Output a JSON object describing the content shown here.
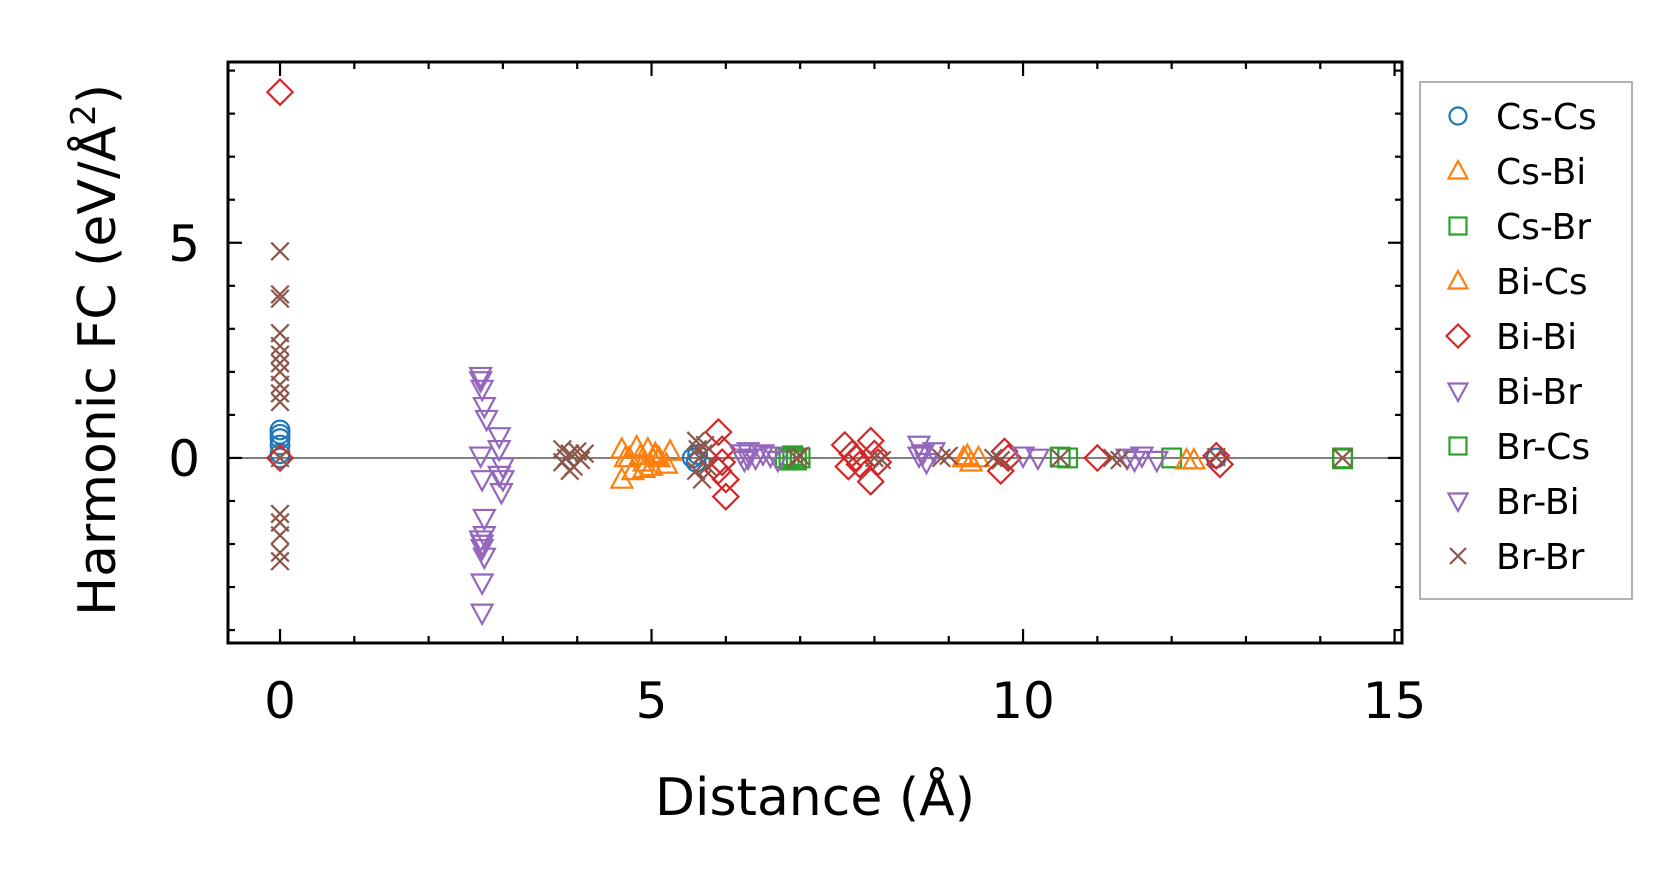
{
  "chart_data": {
    "type": "scatter",
    "xlabel": "Distance (Å)",
    "ylabel": "Harmonic FC (eV/Å",
    "ylabel_sup": "2",
    "ylabel_close": ")",
    "xlim": [
      -0.7,
      15.1
    ],
    "ylim": [
      -4.3,
      9.2
    ],
    "x_ticks": [
      {
        "value": 0,
        "label": "0"
      },
      {
        "value": 5,
        "label": "5"
      },
      {
        "value": 10,
        "label": "10"
      },
      {
        "value": 15,
        "label": "15"
      }
    ],
    "y_ticks": [
      {
        "value": 0,
        "label": "0"
      },
      {
        "value": 5,
        "label": "5"
      }
    ],
    "zero_line": true,
    "grid": false,
    "legend_position": "right-outside",
    "series": [
      {
        "name": "Cs-Cs",
        "marker": "circle",
        "color": "#1f77b4",
        "filled": false,
        "points": [
          [
            0,
            0
          ],
          [
            0,
            0.1
          ],
          [
            0,
            0.3
          ],
          [
            0,
            0.45
          ],
          [
            0,
            0.55
          ],
          [
            0,
            0.65
          ],
          [
            5.55,
            0
          ],
          [
            5.6,
            -0.1
          ],
          [
            5.62,
            0.08
          ],
          [
            12.6,
            0
          ]
        ]
      },
      {
        "name": "Cs-Bi",
        "marker": "triangle-up",
        "color": "#ff7f0e",
        "filled": false,
        "points": [
          [
            4.6,
            0.2
          ],
          [
            4.6,
            -0.5
          ],
          [
            4.7,
            0
          ],
          [
            4.75,
            -0.3
          ],
          [
            4.8,
            0.25
          ],
          [
            4.85,
            0.05
          ],
          [
            4.9,
            -0.25
          ],
          [
            4.95,
            0.2
          ],
          [
            5.0,
            -0.2
          ],
          [
            5.05,
            0.1
          ],
          [
            5.1,
            0
          ],
          [
            5.2,
            -0.15
          ],
          [
            5.25,
            0.15
          ],
          [
            9.2,
            0
          ],
          [
            9.3,
            -0.1
          ],
          [
            9.4,
            0
          ],
          [
            12.3,
            -0.05
          ]
        ]
      },
      {
        "name": "Cs-Br",
        "marker": "square",
        "color": "#2ca02c",
        "filled": false,
        "points": [
          [
            6.8,
            0
          ],
          [
            6.85,
            -0.05
          ],
          [
            6.9,
            0.05
          ],
          [
            7.0,
            0
          ],
          [
            10.6,
            0
          ],
          [
            12.0,
            0
          ],
          [
            14.3,
            0
          ]
        ]
      },
      {
        "name": "Bi-Cs",
        "marker": "triangle-up",
        "color": "#ff7f0e",
        "filled": false,
        "points": [
          [
            4.65,
            0
          ],
          [
            4.9,
            -0.1
          ],
          [
            5.05,
            0.05
          ],
          [
            9.25,
            0.05
          ],
          [
            12.2,
            -0.05
          ]
        ]
      },
      {
        "name": "Bi-Bi",
        "marker": "diamond",
        "color": "#d62728",
        "filled": false,
        "points": [
          [
            0,
            8.5
          ],
          [
            0,
            0
          ],
          [
            5.9,
            0.6
          ],
          [
            5.9,
            -0.3
          ],
          [
            5.95,
            0.2
          ],
          [
            6.0,
            -0.5
          ],
          [
            6.0,
            -0.9
          ],
          [
            5.95,
            -0.1
          ],
          [
            7.6,
            0.3
          ],
          [
            7.65,
            -0.2
          ],
          [
            7.7,
            0.1
          ],
          [
            7.75,
            0
          ],
          [
            7.8,
            -0.15
          ],
          [
            7.95,
            0.4
          ],
          [
            7.95,
            -0.55
          ],
          [
            8.0,
            0.1
          ],
          [
            8.05,
            -0.1
          ],
          [
            9.7,
            -0.3
          ],
          [
            9.75,
            0.15
          ],
          [
            9.8,
            0
          ],
          [
            11.0,
            0
          ],
          [
            12.6,
            0.05
          ],
          [
            12.65,
            -0.15
          ]
        ]
      },
      {
        "name": "Bi-Br",
        "marker": "triangle-down",
        "color": "#9467bd",
        "filled": false,
        "points": [
          [
            2.7,
            1.9
          ],
          [
            2.72,
            1.6
          ],
          [
            2.75,
            1.2
          ],
          [
            2.78,
            0.9
          ],
          [
            2.7,
            0.05
          ],
          [
            2.72,
            -0.5
          ],
          [
            2.75,
            -1.4
          ],
          [
            2.7,
            -1.9
          ],
          [
            2.72,
            -2.1
          ],
          [
            2.75,
            -2.3
          ],
          [
            2.72,
            -2.9
          ],
          [
            2.72,
            -3.6
          ],
          [
            2.95,
            0.5
          ],
          [
            2.95,
            0.2
          ],
          [
            3.0,
            -0.2
          ],
          [
            3.0,
            -0.5
          ],
          [
            2.98,
            -0.8
          ],
          [
            6.2,
            0.1
          ],
          [
            6.25,
            -0.05
          ],
          [
            6.3,
            0.15
          ],
          [
            6.4,
            0
          ],
          [
            6.5,
            0.1
          ],
          [
            6.6,
            0.05
          ],
          [
            6.7,
            -0.05
          ],
          [
            8.6,
            0.3
          ],
          [
            8.65,
            0.1
          ],
          [
            8.7,
            -0.1
          ],
          [
            8.8,
            0.15
          ],
          [
            10.0,
            0.05
          ],
          [
            10.2,
            0
          ],
          [
            11.4,
            0
          ],
          [
            11.6,
            0.05
          ],
          [
            11.8,
            -0.05
          ]
        ]
      },
      {
        "name": "Br-Cs",
        "marker": "square",
        "color": "#2ca02c",
        "filled": false,
        "points": [
          [
            6.95,
            -0.05
          ],
          [
            10.5,
            0.02
          ],
          [
            14.3,
            -0.02
          ]
        ]
      },
      {
        "name": "Br-Bi",
        "marker": "triangle-down",
        "color": "#9467bd",
        "filled": false,
        "points": [
          [
            2.7,
            1.8
          ],
          [
            2.75,
            -1.8
          ],
          [
            2.72,
            -2.0
          ],
          [
            2.95,
            -0.4
          ],
          [
            6.3,
            0
          ],
          [
            8.6,
            0.05
          ],
          [
            11.5,
            -0.05
          ]
        ]
      },
      {
        "name": "Br-Br",
        "marker": "x",
        "color": "#8c564b",
        "filled": false,
        "points": [
          [
            0,
            4.8
          ],
          [
            0,
            3.8
          ],
          [
            0,
            3.7
          ],
          [
            0,
            2.9
          ],
          [
            0,
            2.6
          ],
          [
            0,
            2.4
          ],
          [
            0,
            2.2
          ],
          [
            0,
            2.0
          ],
          [
            0,
            1.7
          ],
          [
            0,
            1.5
          ],
          [
            0,
            1.3
          ],
          [
            0,
            0
          ],
          [
            0,
            -1.3
          ],
          [
            0,
            -1.5
          ],
          [
            0,
            -1.8
          ],
          [
            0,
            -2.2
          ],
          [
            0,
            -2.4
          ],
          [
            3.8,
            0.2
          ],
          [
            3.8,
            -0.1
          ],
          [
            3.85,
            0
          ],
          [
            3.9,
            0.1
          ],
          [
            3.95,
            -0.2
          ],
          [
            4.0,
            0.15
          ],
          [
            4.05,
            -0.05
          ],
          [
            4.1,
            0.1
          ],
          [
            3.9,
            -0.3
          ],
          [
            5.6,
            0.4
          ],
          [
            5.62,
            0.2
          ],
          [
            5.65,
            0
          ],
          [
            5.6,
            -0.3
          ],
          [
            5.68,
            -0.5
          ],
          [
            5.7,
            0.1
          ],
          [
            5.75,
            -0.2
          ],
          [
            5.72,
            0.3
          ],
          [
            6.95,
            0
          ],
          [
            7.0,
            0.05
          ],
          [
            8.0,
            0
          ],
          [
            8.1,
            -0.05
          ],
          [
            8.9,
            0
          ],
          [
            9.0,
            0.05
          ],
          [
            9.6,
            0
          ],
          [
            9.7,
            -0.05
          ],
          [
            10.5,
            0
          ],
          [
            11.2,
            0
          ],
          [
            11.3,
            -0.05
          ],
          [
            12.6,
            0.02
          ],
          [
            14.3,
            0
          ]
        ]
      }
    ]
  }
}
